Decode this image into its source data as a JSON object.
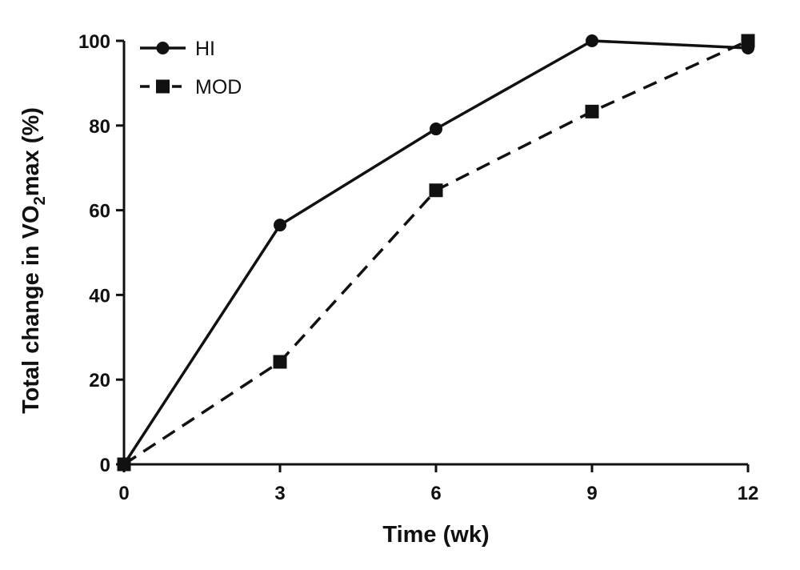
{
  "chart_data": {
    "type": "line",
    "title": "",
    "xlabel": "Time (wk)",
    "ylabel_main": "Total change in VO",
    "ylabel_sub": "2",
    "ylabel_tail": "max (%)",
    "x": [
      0,
      3,
      6,
      9,
      12
    ],
    "xticks": [
      "0",
      "3",
      "6",
      "9",
      "12"
    ],
    "yticks": [
      "0",
      "20",
      "40",
      "60",
      "80",
      "100"
    ],
    "xlim": [
      0,
      12
    ],
    "ylim": [
      0,
      100
    ],
    "grid": false,
    "legend_position": "top-left",
    "series": [
      {
        "name": "HI",
        "marker": "circle",
        "dash": "solid",
        "color": "#111111",
        "values": [
          0,
          56.5,
          79.2,
          100,
          98.3
        ]
      },
      {
        "name": "MOD",
        "marker": "square",
        "dash": "dashed",
        "color": "#111111",
        "values": [
          0,
          24.2,
          64.7,
          83.3,
          100
        ]
      }
    ]
  }
}
